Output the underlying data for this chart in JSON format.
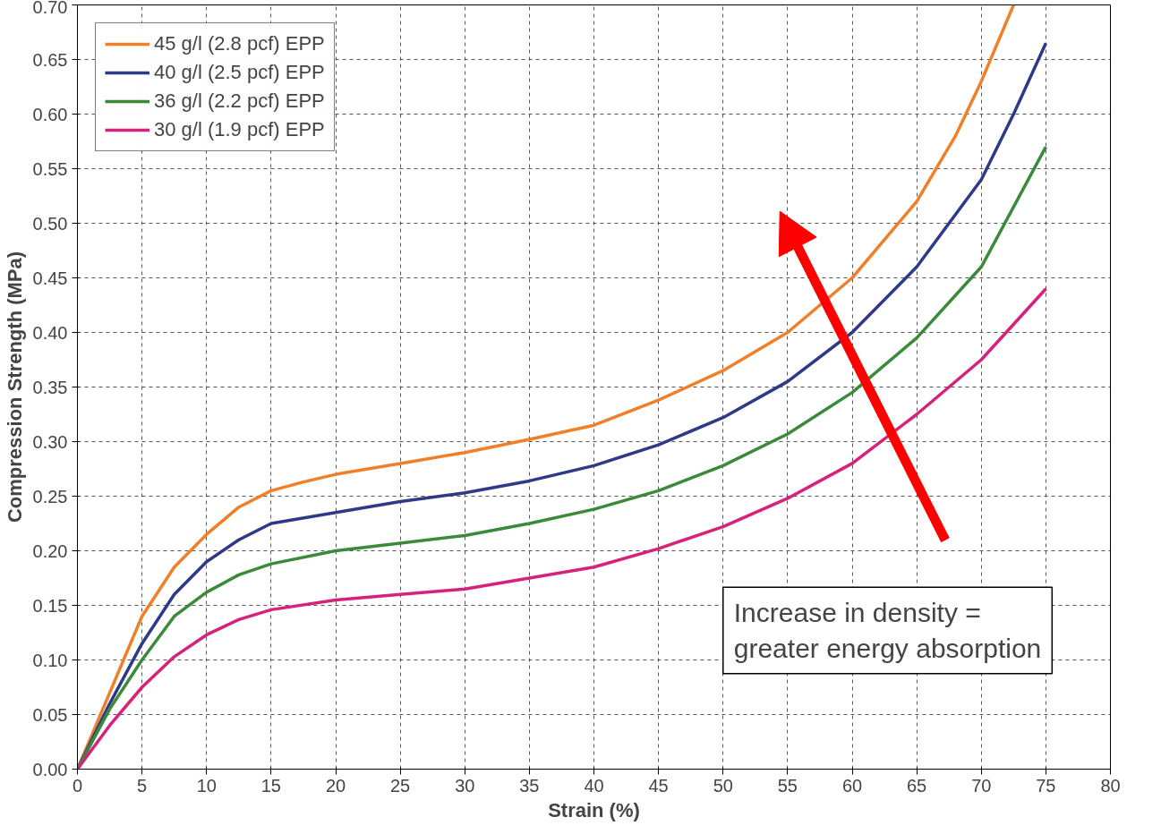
{
  "chart_data": {
    "type": "line",
    "xlabel": "Strain (%)",
    "ylabel": "Compression Strength (MPa)",
    "xlim": [
      0,
      80
    ],
    "xticks": [
      0,
      5,
      10,
      15,
      20,
      25,
      30,
      35,
      40,
      45,
      50,
      55,
      60,
      65,
      70,
      75,
      80
    ],
    "ylim": [
      0,
      0.7
    ],
    "yticks": [
      {
        "value": 0,
        "label": "0.00"
      },
      {
        "value": 0.05,
        "label": "0.05"
      },
      {
        "value": 0.1,
        "label": "0.10"
      },
      {
        "value": 0.15,
        "label": "0.15"
      },
      {
        "value": 0.2,
        "label": "0.20"
      },
      {
        "value": 0.25,
        "label": "0.25"
      },
      {
        "value": 0.3,
        "label": "0.30"
      },
      {
        "value": 0.35,
        "label": "0.35"
      },
      {
        "value": 0.4,
        "label": "0.40"
      },
      {
        "value": 0.45,
        "label": "0.45"
      },
      {
        "value": 0.5,
        "label": "0.50"
      },
      {
        "value": 0.55,
        "label": "0.55"
      },
      {
        "value": 0.6,
        "label": "0.60"
      },
      {
        "value": 0.65,
        "label": "0.65"
      },
      {
        "value": 0.7,
        "label": "0.70"
      }
    ],
    "grid": true,
    "legend": "top left",
    "line_style": "solid",
    "annotations": [
      "Increase in density =\ngreater energy absorption"
    ],
    "series": [
      {
        "name": "45 g/l (2.8 pcf) EPP",
        "color": "#f07f2a",
        "x": [
          0,
          2.5,
          5,
          7.5,
          10,
          12.5,
          15,
          17.5,
          20,
          25,
          30,
          35,
          40,
          45,
          50,
          55,
          60,
          65,
          68,
          70,
          72.5
        ],
        "values": [
          0,
          0.07,
          0.14,
          0.185,
          0.215,
          0.24,
          0.255,
          0.263,
          0.27,
          0.28,
          0.29,
          0.302,
          0.315,
          0.338,
          0.365,
          0.4,
          0.45,
          0.52,
          0.58,
          0.63,
          0.7
        ]
      },
      {
        "name": "40 g/l (2.5 pcf) EPP",
        "color": "#2e3a87",
        "x": [
          0,
          2.5,
          5,
          7.5,
          10,
          12.5,
          15,
          20,
          25,
          30,
          35,
          40,
          45,
          50,
          55,
          60,
          65,
          70,
          72.5,
          75
        ],
        "values": [
          0,
          0.06,
          0.115,
          0.16,
          0.19,
          0.21,
          0.225,
          0.235,
          0.245,
          0.253,
          0.264,
          0.278,
          0.297,
          0.322,
          0.355,
          0.4,
          0.46,
          0.54,
          0.6,
          0.665
        ]
      },
      {
        "name": "36 g/l (2.2 pcf) EPP",
        "color": "#3a8a3a",
        "x": [
          0,
          2.5,
          5,
          7.5,
          10,
          12.5,
          15,
          20,
          25,
          30,
          35,
          40,
          45,
          50,
          55,
          60,
          65,
          70,
          75
        ],
        "values": [
          0,
          0.055,
          0.1,
          0.14,
          0.162,
          0.178,
          0.188,
          0.2,
          0.207,
          0.214,
          0.225,
          0.238,
          0.255,
          0.278,
          0.307,
          0.345,
          0.395,
          0.46,
          0.57
        ]
      },
      {
        "name": "30 g/l (1.9 pcf) EPP",
        "color": "#d6227a",
        "x": [
          0,
          2.5,
          5,
          7.5,
          10,
          12.5,
          15,
          20,
          25,
          30,
          35,
          40,
          45,
          50,
          55,
          60,
          65,
          70,
          75
        ],
        "values": [
          0,
          0.04,
          0.075,
          0.103,
          0.123,
          0.137,
          0.146,
          0.155,
          0.16,
          0.165,
          0.175,
          0.185,
          0.202,
          0.222,
          0.248,
          0.28,
          0.325,
          0.375,
          0.44
        ]
      }
    ]
  }
}
